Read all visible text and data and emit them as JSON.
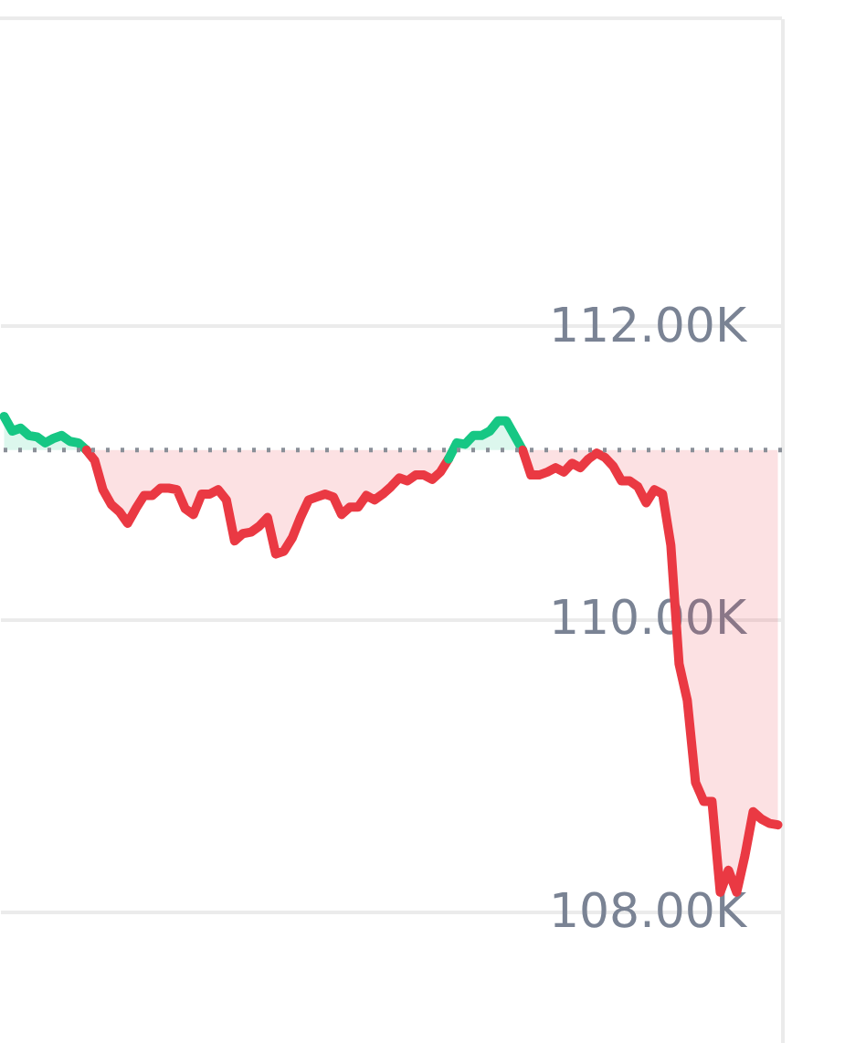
{
  "chart_data": {
    "type": "area",
    "categories": [
      null,
      null,
      null,
      null,
      null,
      null,
      null,
      null,
      null,
      null,
      null,
      null,
      null,
      null,
      null,
      null,
      null,
      null,
      null,
      null,
      null,
      null,
      null,
      null,
      null,
      null,
      null,
      null,
      null,
      null,
      null,
      null,
      null,
      null,
      null,
      null,
      null,
      null,
      null,
      null,
      null,
      null,
      null,
      null,
      null,
      null,
      null,
      null,
      null,
      null,
      null,
      null,
      null,
      null,
      null,
      null,
      null,
      null,
      null,
      null,
      null,
      null,
      null,
      null,
      null,
      null,
      null,
      null,
      null,
      null,
      null,
      null,
      null,
      null,
      null,
      null,
      null,
      null,
      null,
      null,
      null,
      null,
      null,
      null,
      null,
      null,
      null,
      null,
      null,
      null,
      null,
      null,
      null,
      null,
      null
    ],
    "series": [
      {
        "color": "#16c784",
        "values": [
          111.38,
          111.28,
          111.3,
          111.25,
          111.24,
          111.2,
          111.23,
          111.25,
          111.21,
          111.2,
          111.15,
          null,
          null,
          null,
          null,
          null,
          null,
          null,
          null,
          null,
          null,
          null,
          null,
          null,
          null,
          null,
          null,
          null,
          null,
          null,
          null,
          null,
          null,
          null,
          null,
          null,
          null,
          null,
          null,
          null,
          null,
          null,
          null,
          null,
          null,
          null,
          null,
          null,
          null,
          null,
          null,
          null,
          null,
          null,
          null,
          null,
          null,
          null,
          null,
          null,
          null,
          null,
          null,
          null,
          null,
          null,
          null,
          null,
          null,
          null,
          null,
          null,
          null,
          null,
          null,
          null,
          null,
          null,
          null,
          null,
          null,
          null,
          null,
          null,
          null,
          null,
          null,
          null,
          null,
          null,
          null,
          null,
          null,
          null,
          null
        ]
      },
      {
        "color": "#ea3943",
        "type": "line",
        "upper": [
          null,
          null,
          null,
          null,
          null,
          null,
          null,
          null,
          null,
          null,
          111.15,
          111.15,
          111.15,
          111.15,
          111.15,
          111.15,
          111.15,
          111.15,
          111.15,
          111.15,
          111.15,
          111.15,
          111.15,
          111.15,
          111.15,
          111.15,
          111.15,
          111.15,
          111.15,
          111.15,
          111.15,
          111.15,
          111.15,
          111.15,
          111.15,
          111.15,
          111.15,
          111.15,
          111.15,
          111.15,
          111.15,
          111.15,
          111.15,
          111.15,
          111.15,
          111.15,
          111.15,
          111.15,
          111.15,
          111.15,
          111.15,
          111.15,
          111.15,
          111.15,
          111.15,
          null,
          null,
          null,
          null,
          null,
          null,
          null,
          null,
          null,
          null,
          null,
          null,
          null,
          null,
          null,
          null,
          null,
          null,
          null,
          null,
          null,
          null,
          null,
          null,
          null,
          null,
          null,
          null,
          null,
          null,
          null,
          null,
          null,
          null,
          null,
          null,
          null,
          null,
          null,
          null
        ],
        "lower": [
          null,
          null,
          null,
          null,
          null,
          null,
          null,
          null,
          null,
          null,
          111.15,
          111.08,
          110.88,
          110.78,
          110.73,
          110.65,
          110.75,
          110.84,
          110.84,
          110.89,
          110.89,
          110.88,
          110.75,
          110.71,
          110.85,
          110.85,
          110.88,
          110.81,
          110.53,
          110.58,
          110.59,
          110.63,
          110.69,
          110.44,
          110.46,
          110.55,
          110.69,
          110.81,
          110.83,
          110.85,
          110.83,
          110.71,
          110.76,
          110.76,
          110.84,
          110.81,
          110.85,
          110.9,
          110.96,
          110.94,
          110.98,
          110.98,
          110.95,
          111.0,
          111.09,
          null,
          null,
          null,
          null,
          null,
          null,
          null,
          null,
          null,
          null,
          null,
          null,
          null,
          null,
          null,
          null,
          null,
          null,
          null,
          null,
          null,
          null,
          null,
          null,
          null,
          null,
          null,
          null,
          null,
          null,
          null,
          null,
          null,
          null,
          null,
          null,
          null,
          null,
          null,
          null
        ],
        "values": [
          null,
          null,
          null,
          null,
          null,
          null,
          null,
          null,
          null,
          null,
          111.15,
          111.08,
          110.88,
          110.78,
          110.73,
          110.65,
          110.75,
          110.84,
          110.84,
          110.89,
          110.89,
          110.88,
          110.75,
          110.71,
          110.85,
          110.85,
          110.88,
          110.81,
          110.53,
          110.58,
          110.59,
          110.63,
          110.69,
          110.44,
          110.46,
          110.55,
          110.69,
          110.81,
          110.83,
          110.85,
          110.83,
          110.71,
          110.76,
          110.76,
          110.84,
          110.81,
          110.85,
          110.9,
          110.96,
          110.94,
          110.98,
          110.98,
          110.95,
          111.0,
          111.09,
          null,
          null,
          null,
          null,
          null,
          null,
          null,
          null,
          null,
          null,
          null,
          null,
          null,
          null,
          null,
          null,
          null,
          null,
          null,
          null,
          null,
          null,
          null,
          null,
          null,
          null,
          null,
          null,
          null,
          null,
          null,
          null,
          null,
          null,
          null,
          null,
          null,
          null,
          null,
          null
        ]
      },
      {
        "color": "#16c784",
        "values": [
          null,
          null,
          null,
          null,
          null,
          null,
          null,
          null,
          null,
          null,
          null,
          null,
          null,
          null,
          null,
          null,
          null,
          null,
          null,
          null,
          null,
          null,
          null,
          null,
          null,
          null,
          null,
          null,
          null,
          null,
          null,
          null,
          null,
          null,
          null,
          null,
          null,
          null,
          null,
          null,
          null,
          null,
          null,
          null,
          null,
          null,
          null,
          null,
          null,
          null,
          null,
          null,
          null,
          null,
          111.09,
          111.2,
          111.19,
          111.25,
          111.25,
          111.28,
          111.35,
          111.35,
          111.25,
          111.15,
          null,
          null,
          null,
          null,
          null,
          null,
          null,
          null,
          null,
          null,
          null,
          null,
          null,
          null,
          null,
          null,
          null,
          null,
          null,
          null,
          null,
          null,
          null,
          null,
          null,
          null,
          null,
          null,
          null,
          null,
          null
        ]
      },
      {
        "color": "#ea3943",
        "type": "line",
        "upper": [
          null,
          null,
          null,
          null,
          null,
          null,
          null,
          null,
          null,
          null,
          null,
          null,
          null,
          null,
          null,
          null,
          null,
          null,
          null,
          null,
          null,
          null,
          null,
          null,
          null,
          null,
          null,
          null,
          null,
          null,
          null,
          null,
          null,
          null,
          null,
          null,
          null,
          null,
          null,
          null,
          null,
          null,
          null,
          null,
          null,
          null,
          null,
          null,
          null,
          null,
          null,
          null,
          null,
          null,
          null,
          null,
          null,
          null,
          null,
          null,
          null,
          null,
          null,
          111.15,
          111.15,
          111.15,
          111.15,
          111.15,
          111.15,
          111.15,
          111.15,
          111.15,
          111.15,
          111.15,
          111.15,
          111.15,
          111.15,
          111.15,
          111.15,
          111.15,
          111.15,
          111.15,
          111.15,
          111.15,
          111.15,
          111.15,
          111.15,
          111.15,
          111.15,
          111.15,
          111.15,
          111.15,
          111.15,
          111.15,
          111.15
        ],
        "lower": [
          null,
          null,
          null,
          null,
          null,
          null,
          null,
          null,
          null,
          null,
          null,
          null,
          null,
          null,
          null,
          null,
          null,
          null,
          null,
          null,
          null,
          null,
          null,
          null,
          null,
          null,
          null,
          null,
          null,
          null,
          null,
          null,
          null,
          null,
          null,
          null,
          null,
          null,
          null,
          null,
          null,
          null,
          null,
          null,
          null,
          null,
          null,
          null,
          null,
          null,
          null,
          null,
          null,
          null,
          null,
          null,
          null,
          null,
          null,
          null,
          null,
          null,
          null,
          111.15,
          110.98,
          110.98,
          111.0,
          111.03,
          111.0,
          111.06,
          111.03,
          111.09,
          111.13,
          111.1,
          111.04,
          110.94,
          110.94,
          110.9,
          110.79,
          110.88,
          110.85,
          110.5,
          109.69,
          109.44,
          108.88,
          108.75,
          108.75,
          108.13,
          108.28,
          108.13,
          108.38,
          108.68,
          108.63,
          108.6,
          108.59
        ],
        "values": [
          null,
          null,
          null,
          null,
          null,
          null,
          null,
          null,
          null,
          null,
          null,
          null,
          null,
          null,
          null,
          null,
          null,
          null,
          null,
          null,
          null,
          null,
          null,
          null,
          null,
          null,
          null,
          null,
          null,
          null,
          null,
          null,
          null,
          null,
          null,
          null,
          null,
          null,
          null,
          null,
          null,
          null,
          null,
          null,
          null,
          null,
          null,
          null,
          null,
          null,
          null,
          null,
          null,
          null,
          null,
          null,
          null,
          null,
          null,
          null,
          null,
          null,
          null,
          111.15,
          110.98,
          110.98,
          111.0,
          111.03,
          111.0,
          111.06,
          111.03,
          111.09,
          111.13,
          111.1,
          111.04,
          110.94,
          110.94,
          110.9,
          110.79,
          110.88,
          110.85,
          110.5,
          109.69,
          109.44,
          108.88,
          108.75,
          108.75,
          108.13,
          108.28,
          108.13,
          108.38,
          108.68,
          108.63,
          108.6,
          108.59
        ]
      }
    ],
    "ylim": [
      107.1,
      114.1
    ],
    "yticks": [
      {
        "value": 108,
        "label": "108.00K"
      },
      {
        "value": 110,
        "label": "110.00K"
      },
      {
        "value": 112,
        "label": "112.00K"
      }
    ],
    "ref_lines": [
      {
        "axis": "y",
        "value": 111.15,
        "color": "#8a8f98",
        "line_style": "dotted"
      }
    ],
    "grid": "y"
  }
}
